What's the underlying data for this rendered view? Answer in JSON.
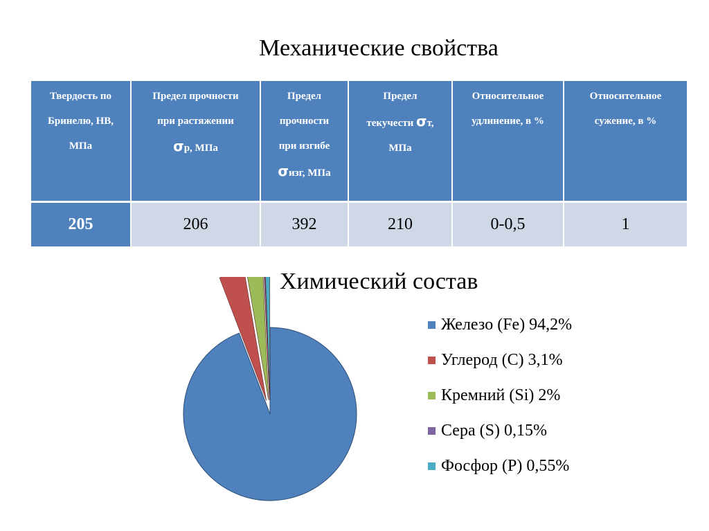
{
  "mechanical": {
    "title": "Механические свойства",
    "columns": [
      {
        "lines": [
          "Твердость по",
          "Бринелю, НВ,",
          "МПа"
        ],
        "sigma": "",
        "value": "205"
      },
      {
        "lines": [
          "Предел прочности",
          "при растяжении"
        ],
        "sigma": "σ",
        "sigma_suffix": "р, МПа",
        "value": "206"
      },
      {
        "lines": [
          "Предел",
          "прочности",
          "при изгибе"
        ],
        "sigma": "σ",
        "sigma_suffix": "изг,  МПа",
        "value": "392"
      },
      {
        "lines": [
          "Предел",
          "текучести  "
        ],
        "sigma": "σ",
        "sigma_suffix": "т,",
        "after": "МПа",
        "value": "210"
      },
      {
        "lines": [
          "Относительное",
          "удлинение,  в %"
        ],
        "sigma": "",
        "value": "0-0,5"
      },
      {
        "lines": [
          "Относительное",
          "сужение, в %"
        ],
        "sigma": "",
        "value": "1"
      }
    ],
    "header_color": "#4f81bd",
    "row_color": "#d0d8e8"
  },
  "chemical": {
    "title": "Химический состав"
  },
  "chart_data": {
    "type": "pie",
    "title": "Химический состав",
    "categories": [
      "Железо (Fe)",
      "Углерод (C)",
      "Кремний (Si)",
      "Сера (S)",
      "Фосфор (P)"
    ],
    "values": [
      94.2,
      3.1,
      2,
      0.15,
      0.55
    ],
    "legend_labels": [
      "Железо (Fe) 94,2%",
      "Углерод (C) 3,1%",
      "Кремний (Si) 2%",
      "Сера (S) 0,15%",
      "Фосфор (P) 0,55%"
    ],
    "colors": [
      "#4f81bd",
      "#c0504d",
      "#9bbb59",
      "#8064a2",
      "#4bacc6"
    ],
    "legend_position": "right",
    "exploded": [
      false,
      true,
      true,
      true,
      true
    ]
  }
}
